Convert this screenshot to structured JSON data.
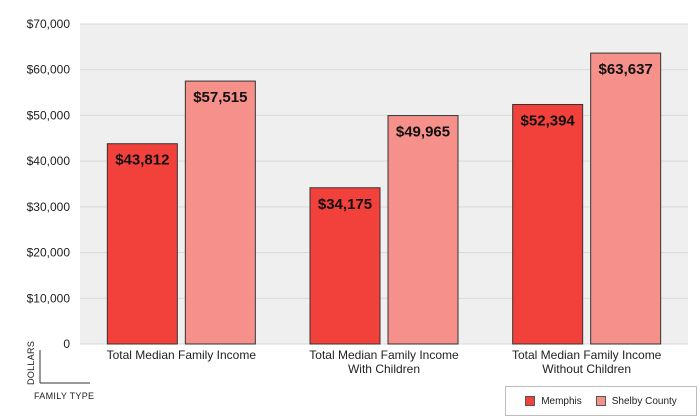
{
  "colors": {
    "memphis": "#f2403a",
    "shelby": "#f6908a",
    "plot_bg": "#efefef",
    "grid": "#d9d9d9",
    "bar_stroke": "#333333"
  },
  "chart_data": {
    "type": "bar",
    "categories": [
      [
        "Total Median Family Income"
      ],
      [
        "Total Median Family Income",
        "With Children"
      ],
      [
        "Total Median Family Income",
        "Without Children"
      ]
    ],
    "series": [
      {
        "name": "Memphis",
        "values": [
          43812,
          34175,
          52394
        ],
        "labels": [
          "$43,812",
          "$34,175",
          "$52,394"
        ]
      },
      {
        "name": "Shelby County",
        "values": [
          57515,
          49965,
          63637
        ],
        "labels": [
          "$57,515",
          "$49,965",
          "$63,637"
        ]
      }
    ],
    "ylim": [
      0,
      70000
    ],
    "yticks": [
      0,
      10000,
      20000,
      30000,
      40000,
      50000,
      60000,
      70000
    ],
    "ytick_labels": [
      "0",
      "$10,000",
      "$20,000",
      "$30,000",
      "$40,000",
      "$50,000",
      "$60,000",
      "$70,000"
    ],
    "ylabel": "DOLLARS",
    "xlabel": "FAMILY TYPE",
    "legend_position": "bottom-right",
    "grid": true
  }
}
